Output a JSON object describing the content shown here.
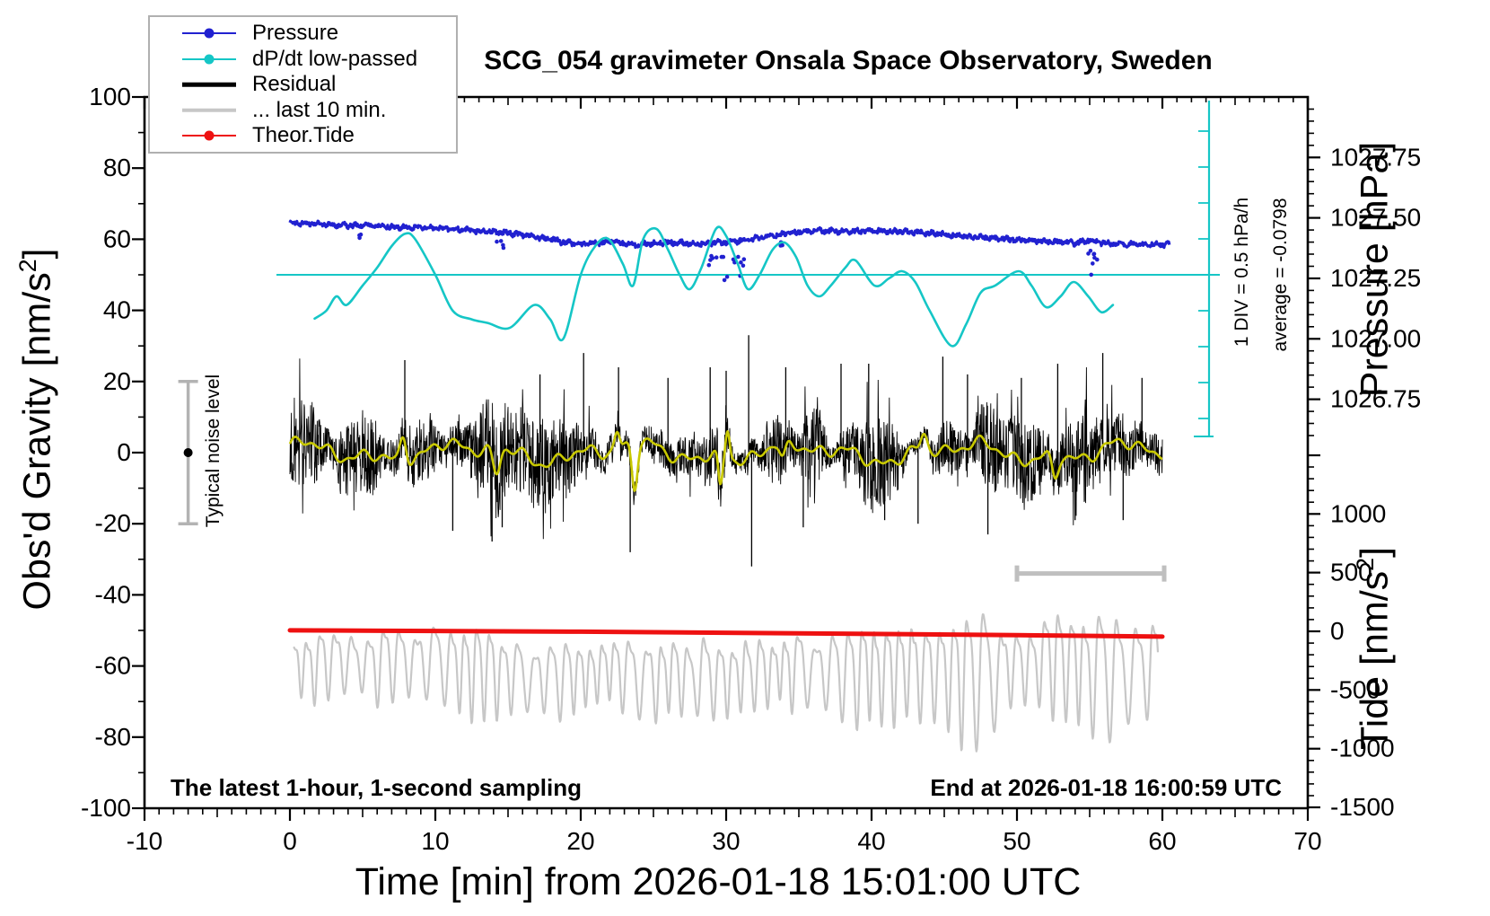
{
  "legend": [
    {
      "label": "Pressure",
      "color": "#2121d0",
      "marker": "line-dot"
    },
    {
      "label": "dP/dt low-passed",
      "color": "#15c6c6",
      "marker": "line-dot"
    },
    {
      "label": "Residual",
      "color": "#000000",
      "marker": "thick-line"
    },
    {
      "label": "... last 10 min.",
      "color": "#c7c7c7",
      "marker": "thick-line"
    },
    {
      "label": "Theor.Tide",
      "color": "#ee1111",
      "marker": "line-dot"
    }
  ],
  "chart_data": {
    "type": "line",
    "title": "SCG_054 gravimeter Onsala Space Observatory, Sweden",
    "xlabel": "Time [min] from 2026-01-18 15:01:00 UTC",
    "x_range": [
      -10,
      70
    ],
    "x_major_ticks": [
      -10,
      0,
      10,
      20,
      30,
      40,
      50,
      60,
      70
    ],
    "axes": {
      "gravity": {
        "label_prefix": "Obs'd Gravity [nm/s",
        "label_sup": "2",
        "label_suffix": "]",
        "range": [
          -100,
          100
        ],
        "major_ticks": [
          100,
          80,
          60,
          40,
          20,
          0,
          -20,
          -40,
          -60,
          -80,
          -100
        ]
      },
      "pressure": {
        "label": "Pressure [hPa]",
        "ticks": [
          1027.75,
          1027.5,
          1027.25,
          1027.0,
          1026.75
        ],
        "tick_labels": [
          "1027.75",
          "1027.50",
          "1027.25",
          "1027.00",
          "1026.75"
        ]
      },
      "tide": {
        "label_prefix": "Tide [nm/s",
        "label_sup": "2",
        "label_suffix": "]",
        "ticks": [
          1000,
          500,
          0,
          -500,
          -1000,
          -1500
        ],
        "tick_labels": [
          "1000",
          "500",
          "0",
          "-500",
          "-1000",
          "-1500"
        ]
      }
    },
    "annotations": {
      "div_scale": "1 DIV = 0.5 hPa/h",
      "average": "average = -0.0798",
      "noise_label": "Typical noise level",
      "noise_marker": {
        "t_min": -7,
        "gravity_center": 0,
        "gravity_half_range": 20
      },
      "sampling_note": "The latest 1-hour, 1-second sampling",
      "end_note": "End at 2026-01-18 16:00:59 UTC"
    },
    "series": {
      "pressure": {
        "name": "Pressure",
        "color": "#2121d0",
        "unit": "hPa",
        "t_start": 0,
        "t_step": 1,
        "values": [
          1027.478,
          1027.476,
          1027.474,
          1027.471,
          1027.468,
          1027.469,
          1027.466,
          1027.462,
          1027.46,
          1027.462,
          1027.459,
          1027.455,
          1027.451,
          1027.446,
          1027.442,
          1027.438,
          1027.43,
          1027.42,
          1027.41,
          1027.398,
          1027.39,
          1027.396,
          1027.403,
          1027.394,
          1027.389,
          1027.394,
          1027.399,
          1027.396,
          1027.393,
          1027.396,
          1027.4,
          1027.406,
          1027.415,
          1027.425,
          1027.434,
          1027.442,
          1027.447,
          1027.445,
          1027.443,
          1027.445,
          1027.447,
          1027.445,
          1027.443,
          1027.44,
          1027.436,
          1027.432,
          1027.426,
          1027.421,
          1027.417,
          1027.413,
          1027.409,
          1027.406,
          1027.403,
          1027.399,
          1027.397,
          1027.408,
          1027.396,
          1027.393,
          1027.391,
          1027.392,
          1027.39
        ],
        "dropout_clusters": [
          [
            4.6,
            4.9,
            3,
            2,
            5
          ],
          [
            14.2,
            14.8,
            4,
            2,
            6
          ],
          [
            28.7,
            31.4,
            16,
            3,
            15
          ],
          [
            33.6,
            33.9,
            3,
            2,
            5
          ],
          [
            54.9,
            55.7,
            8,
            2,
            11
          ]
        ]
      },
      "dpdt": {
        "name": "dP/dt low-passed",
        "color": "#15c6c6",
        "unit": "hPa/h",
        "zero_reference_gravity": 50,
        "div_hpa_per_h": 0.5,
        "points": [
          [
            1.7,
            -0.61
          ],
          [
            2.5,
            -0.5
          ],
          [
            3.2,
            -0.3
          ],
          [
            3.9,
            -0.42
          ],
          [
            5,
            -0.15
          ],
          [
            6,
            0.1
          ],
          [
            7,
            0.4
          ],
          [
            7.9,
            0.57
          ],
          [
            8.6,
            0.5
          ],
          [
            10,
            0.0
          ],
          [
            11.2,
            -0.5
          ],
          [
            12.5,
            -0.62
          ],
          [
            13.6,
            -0.67
          ],
          [
            15.1,
            -0.74
          ],
          [
            16.8,
            -0.42
          ],
          [
            17.9,
            -0.62
          ],
          [
            18.8,
            -0.89
          ],
          [
            20,
            0.0
          ],
          [
            21,
            0.4
          ],
          [
            21.9,
            0.5
          ],
          [
            22.9,
            0.15
          ],
          [
            23.6,
            -0.15
          ],
          [
            24.3,
            0.5
          ],
          [
            25.2,
            0.64
          ],
          [
            26,
            0.35
          ],
          [
            26.8,
            0.0
          ],
          [
            27.5,
            -0.2
          ],
          [
            28.3,
            0.1
          ],
          [
            29.3,
            0.64
          ],
          [
            30,
            0.54
          ],
          [
            30.8,
            0.15
          ],
          [
            31.5,
            -0.2
          ],
          [
            32.3,
            0.0
          ],
          [
            33.2,
            0.35
          ],
          [
            34,
            0.45
          ],
          [
            34.8,
            0.25
          ],
          [
            35.6,
            -0.15
          ],
          [
            36.4,
            -0.3
          ],
          [
            37.2,
            -0.15
          ],
          [
            38.2,
            0.1
          ],
          [
            38.9,
            0.2
          ],
          [
            40.2,
            -0.15
          ],
          [
            41.2,
            -0.05
          ],
          [
            42.1,
            0.05
          ],
          [
            43,
            -0.1
          ],
          [
            44,
            -0.5
          ],
          [
            45.5,
            -0.99
          ],
          [
            46.5,
            -0.69
          ],
          [
            47.5,
            -0.25
          ],
          [
            48.5,
            -0.15
          ],
          [
            50.1,
            0.05
          ],
          [
            51,
            -0.15
          ],
          [
            52,
            -0.45
          ],
          [
            53,
            -0.3
          ],
          [
            53.9,
            -0.1
          ],
          [
            54.9,
            -0.3
          ],
          [
            55.8,
            -0.52
          ],
          [
            56.6,
            -0.42
          ]
        ]
      },
      "residual": {
        "name": "Residual",
        "color": "#000000",
        "center": 0,
        "typical_amplitude": 13,
        "spikes": [
          [
            7.9,
            26
          ],
          [
            11.2,
            -22
          ],
          [
            13.9,
            -25
          ],
          [
            14.6,
            -21
          ],
          [
            17.2,
            22
          ],
          [
            20.2,
            28
          ],
          [
            22.6,
            24
          ],
          [
            23.4,
            -28
          ],
          [
            26.0,
            21
          ],
          [
            28.9,
            24
          ],
          [
            30.0,
            23
          ],
          [
            31.55,
            33
          ],
          [
            31.75,
            -32
          ],
          [
            34.1,
            24
          ],
          [
            35.3,
            -21
          ],
          [
            37.9,
            25
          ],
          [
            39.8,
            25
          ],
          [
            40.9,
            -19
          ],
          [
            43.2,
            -20
          ],
          [
            44.9,
            27
          ],
          [
            46.6,
            22
          ],
          [
            48.0,
            -23
          ],
          [
            50.3,
            21
          ],
          [
            52.8,
            25
          ],
          [
            54.0,
            -19
          ],
          [
            55.9,
            28
          ],
          [
            57.3,
            -19
          ],
          [
            58.6,
            21
          ]
        ]
      },
      "residual_smooth": {
        "color": "#c9c900",
        "bumps": [
          [
            7.8,
            7,
            0.3
          ],
          [
            14.2,
            -7,
            0.35
          ],
          [
            22.5,
            5,
            0.25
          ],
          [
            23.7,
            -12,
            0.26
          ],
          [
            29.6,
            -9,
            0.2
          ],
          [
            30.1,
            8,
            0.2
          ],
          [
            33.9,
            -5,
            0.3
          ],
          [
            43.6,
            4,
            0.3
          ],
          [
            52.6,
            -6,
            0.3
          ]
        ]
      },
      "last10": {
        "name": "... last 10 min.",
        "color": "#c7c7c7",
        "window_minutes": [
          50,
          60
        ],
        "marker_bar_gravity": -34,
        "mean_tide": -330,
        "amplitude_range": [
          150,
          560
        ],
        "period_min": 1.1
      },
      "theor_tide": {
        "name": "Theor.Tide",
        "color": "#ee1111",
        "unit": "nm/s2",
        "points": [
          [
            0,
            8
          ],
          [
            10,
            3
          ],
          [
            20,
            -3
          ],
          [
            30,
            -12
          ],
          [
            40,
            -22
          ],
          [
            50,
            -33
          ],
          [
            60,
            -45
          ]
        ]
      }
    }
  }
}
